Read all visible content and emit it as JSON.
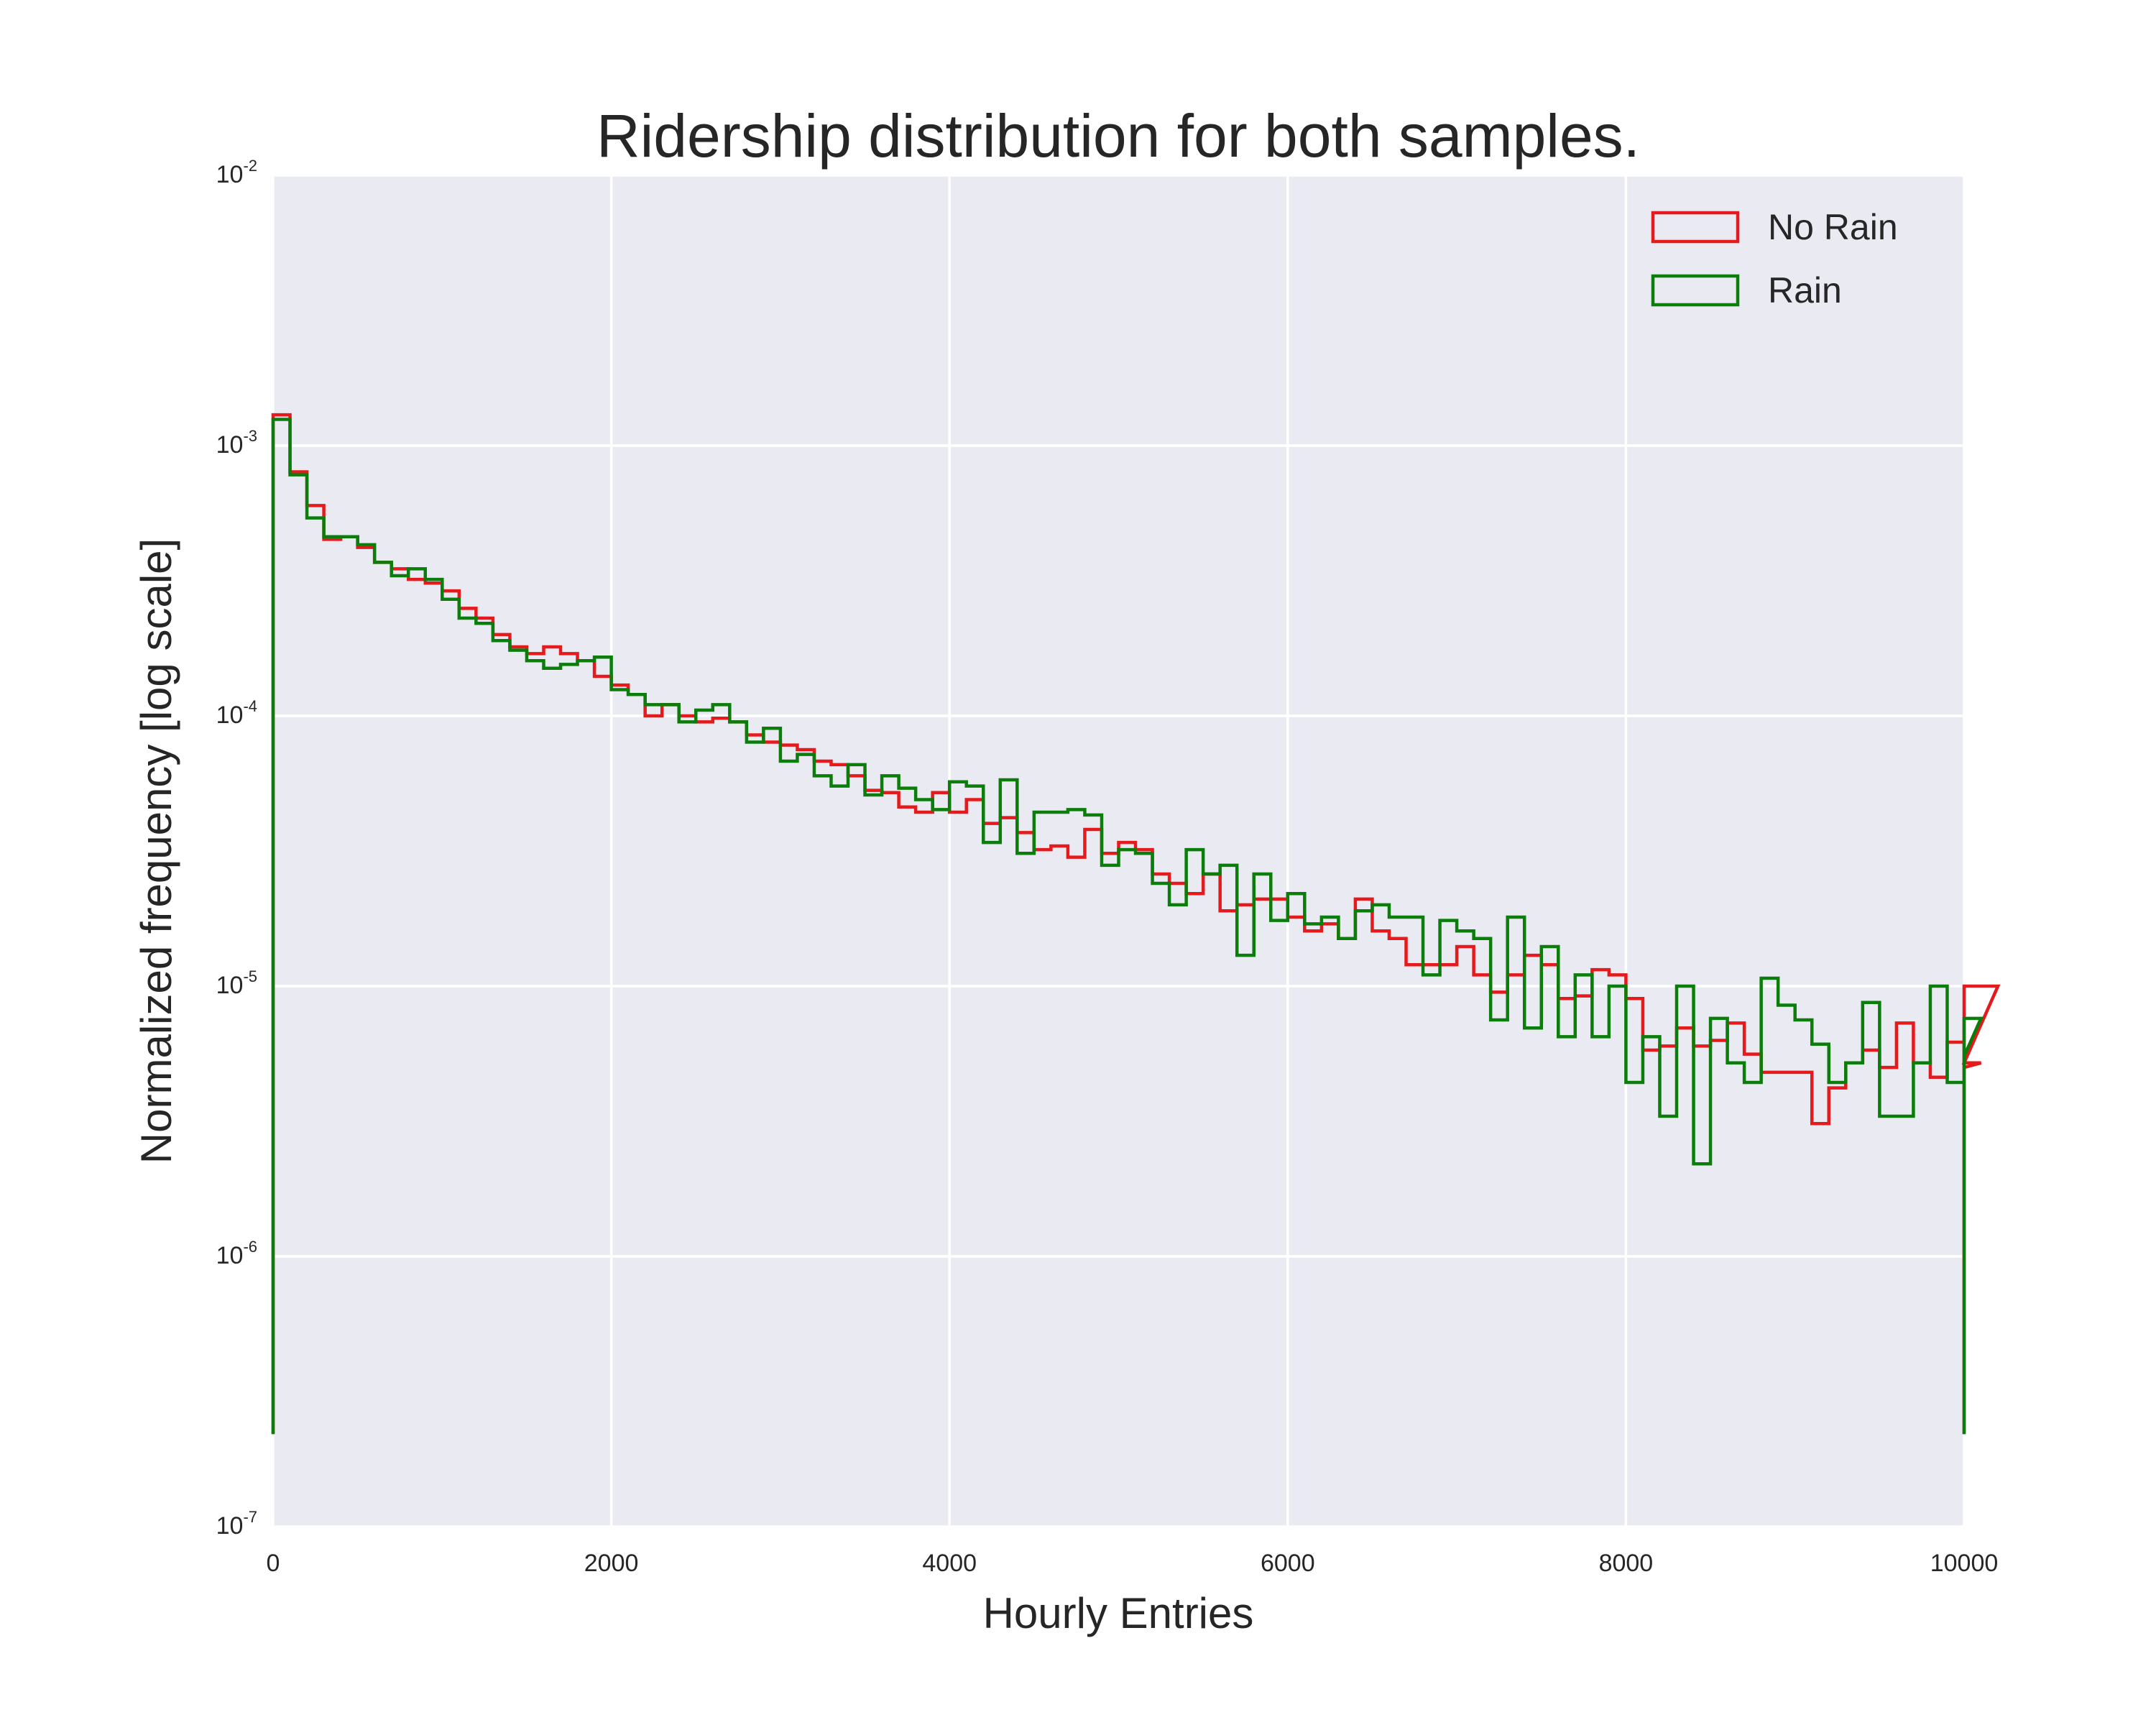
{
  "chart_data": {
    "type": "histogram",
    "title": "Ridership distribution for both samples.",
    "xlabel": "Hourly Entries",
    "ylabel": "Normalized frequency [log scale]",
    "xlim": [
      0,
      10000
    ],
    "ylim": [
      1e-07,
      0.01
    ],
    "yscale": "log",
    "grid": true,
    "legend_position": "top-right",
    "x_ticks": [
      "0",
      "2000",
      "4000",
      "6000",
      "8000",
      "10000"
    ],
    "y_ticks": [
      {
        "base": "10",
        "exp": "-7",
        "value": 1e-07
      },
      {
        "base": "10",
        "exp": "-6",
        "value": 1e-06
      },
      {
        "base": "10",
        "exp": "-5",
        "value": 1e-05
      },
      {
        "base": "10",
        "exp": "-4",
        "value": 0.0001
      },
      {
        "base": "10",
        "exp": "-3",
        "value": 0.001
      },
      {
        "base": "10",
        "exp": "-2",
        "value": 0.01
      }
    ],
    "bin_width": 100,
    "bin_start": 0,
    "series": [
      {
        "name": "No Rain",
        "color": "#e41a1c",
        "values": [
          0.0013,
          0.0008,
          0.0006,
          0.00045,
          0.00046,
          0.00042,
          0.00037,
          0.00035,
          0.00032,
          0.00031,
          0.00029,
          0.00025,
          0.00023,
          0.0002,
          0.00018,
          0.00017,
          0.00018,
          0.00017,
          0.00016,
          0.00014,
          0.00013,
          0.00012,
          0.0001,
          0.00011,
          0.0001,
          9.5e-05,
          9.8e-05,
          9.5e-05,
          8.5e-05,
          8e-05,
          7.8e-05,
          7.5e-05,
          6.8e-05,
          6.6e-05,
          6e-05,
          5.3e-05,
          5.2e-05,
          4.6e-05,
          4.4e-05,
          5.2e-05,
          4.4e-05,
          4.9e-05,
          4e-05,
          4.2e-05,
          3.7e-05,
          3.2e-05,
          3.3e-05,
          3e-05,
          3.8e-05,
          3.1e-05,
          3.4e-05,
          3.2e-05,
          2.6e-05,
          2.4e-05,
          2.2e-05,
          2.6e-05,
          1.9e-05,
          2e-05,
          2.1e-05,
          2.1e-05,
          1.8e-05,
          1.6e-05,
          1.7e-05,
          1.5e-05,
          2.1e-05,
          1.6e-05,
          1.5e-05,
          1.2e-05,
          1.2e-05,
          1.2e-05,
          1.4e-05,
          1.1e-05,
          9.5e-06,
          1.1e-05,
          1.3e-05,
          1.2e-05,
          9e-06,
          9.2e-06,
          1.15e-05,
          1.1e-05,
          9e-06,
          5.8e-06,
          6e-06,
          7e-06,
          6e-06,
          6.3e-06,
          7.3e-06,
          5.6e-06,
          4.8e-06,
          4.8e-06,
          4.8e-06,
          3.1e-06,
          4.2e-06,
          5.2e-06,
          5.8e-06,
          5e-06,
          7.3e-06,
          5.2e-06,
          4.6e-06,
          6.2e-06,
          5e-06,
          5.2e-06,
          1e-05
        ]
      },
      {
        "name": "Rain",
        "color": "#0a7d0a",
        "values": [
          0.00125,
          0.00078,
          0.00054,
          0.00046,
          0.00046,
          0.00043,
          0.00037,
          0.00033,
          0.00035,
          0.00032,
          0.00027,
          0.00023,
          0.00022,
          0.00019,
          0.000175,
          0.00016,
          0.00015,
          0.000155,
          0.00016,
          0.000165,
          0.000125,
          0.00012,
          0.00011,
          0.00011,
          9.5e-05,
          0.000105,
          0.00011,
          9.5e-05,
          8e-05,
          9e-05,
          6.8e-05,
          7.2e-05,
          6e-05,
          5.5e-05,
          6.6e-05,
          5.1e-05,
          6e-05,
          5.4e-05,
          4.9e-05,
          4.5e-05,
          5.7e-05,
          5.5e-05,
          3.4e-05,
          5.8e-05,
          3.1e-05,
          4.4e-05,
          4.4e-05,
          4.5e-05,
          4.3e-05,
          2.8e-05,
          3.2e-05,
          3.1e-05,
          2.4e-05,
          2e-05,
          3.2e-05,
          2.6e-05,
          2.8e-05,
          1.3e-05,
          2.6e-05,
          1.75e-05,
          2.2e-05,
          1.7e-05,
          1.8e-05,
          1.5e-05,
          1.9e-05,
          2e-05,
          1.8e-05,
          1.8e-05,
          1.1e-05,
          1.75e-05,
          1.6e-05,
          1.5e-05,
          7.5e-06,
          1.8e-05,
          7e-06,
          1.4e-05,
          6.5e-06,
          1.1e-05,
          6.5e-06,
          1e-05,
          4.4e-06,
          6.5e-06,
          3.3e-06,
          1e-05,
          2.2e-06,
          7.6e-06,
          5.2e-06,
          4.4e-06,
          1.07e-05,
          8.5e-06,
          7.5e-06,
          6.1e-06,
          4.4e-06,
          5.2e-06,
          8.7e-06,
          3.3e-06,
          3.3e-06,
          5.2e-06,
          1e-05,
          4.4e-06,
          5.5e-06,
          7.6e-06
        ]
      }
    ]
  }
}
